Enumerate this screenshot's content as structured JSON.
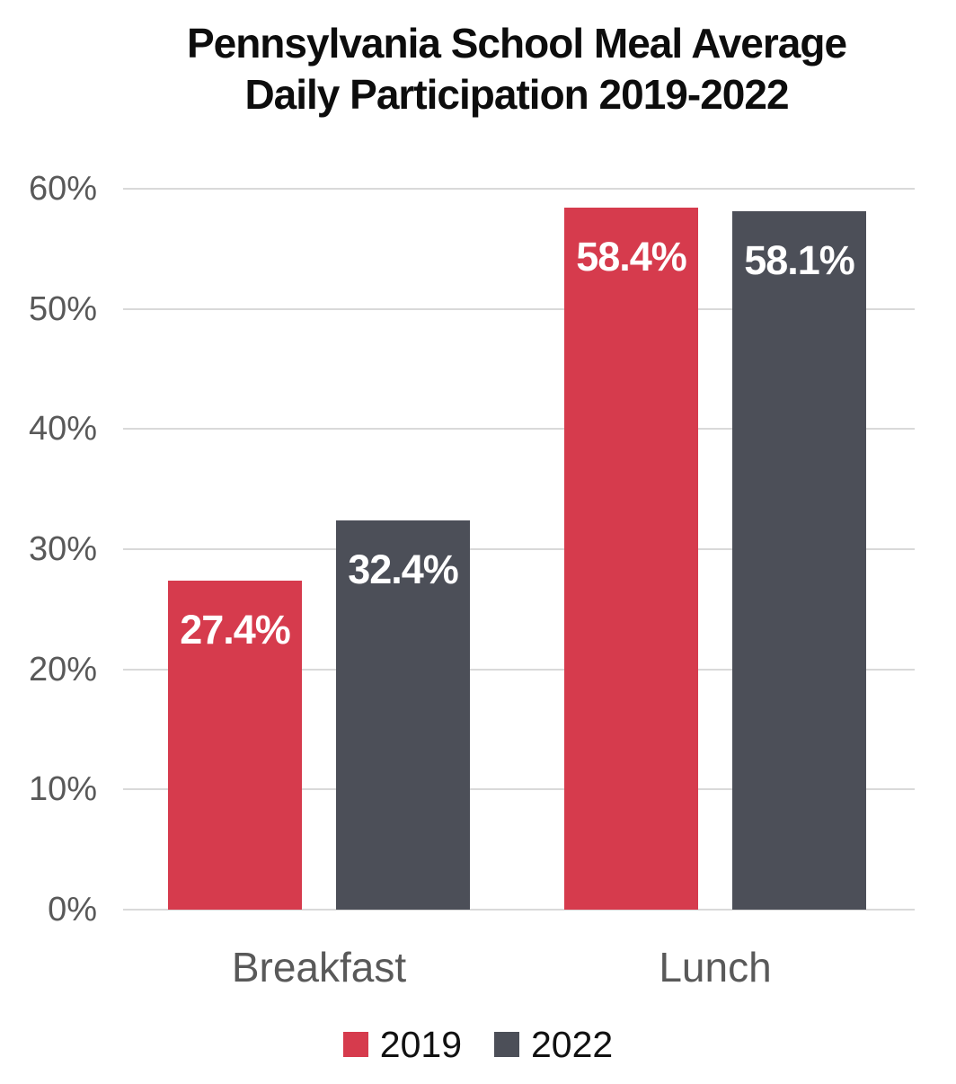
{
  "title": {
    "line1": "Pennsylvania School Meal Average",
    "line2": "Daily Participation 2019-2022"
  },
  "colors": {
    "series_2019": "#D63B4D",
    "series_2022": "#4C4F58",
    "axis_text": "#595959",
    "gridline": "#D9D9D9",
    "value_label_text": "#FFFFFF",
    "title_text": "#0D0D0D",
    "legend_text": "#111111",
    "background": "#FFFFFF"
  },
  "chart_data": {
    "type": "bar",
    "title": "Pennsylvania School Meal Average Daily Participation 2019-2022",
    "categories": [
      "Breakfast",
      "Lunch"
    ],
    "series": [
      {
        "name": "2019",
        "color": "#D63B4D",
        "values": [
          27.4,
          58.4
        ],
        "labels": [
          "27.4%",
          "58.4%"
        ]
      },
      {
        "name": "2022",
        "color": "#4C4F58",
        "values": [
          32.4,
          58.1
        ],
        "labels": [
          "32.4%",
          "58.1%"
        ]
      }
    ],
    "xlabel": "",
    "ylabel": "",
    "ylim": [
      0,
      60
    ],
    "yticks": [
      "0%",
      "10%",
      "20%",
      "30%",
      "40%",
      "50%",
      "60%"
    ],
    "ytick_values": [
      0,
      10,
      20,
      30,
      40,
      50,
      60
    ],
    "grid": true,
    "legend_position": "bottom",
    "legend": [
      "2019",
      "2022"
    ]
  }
}
